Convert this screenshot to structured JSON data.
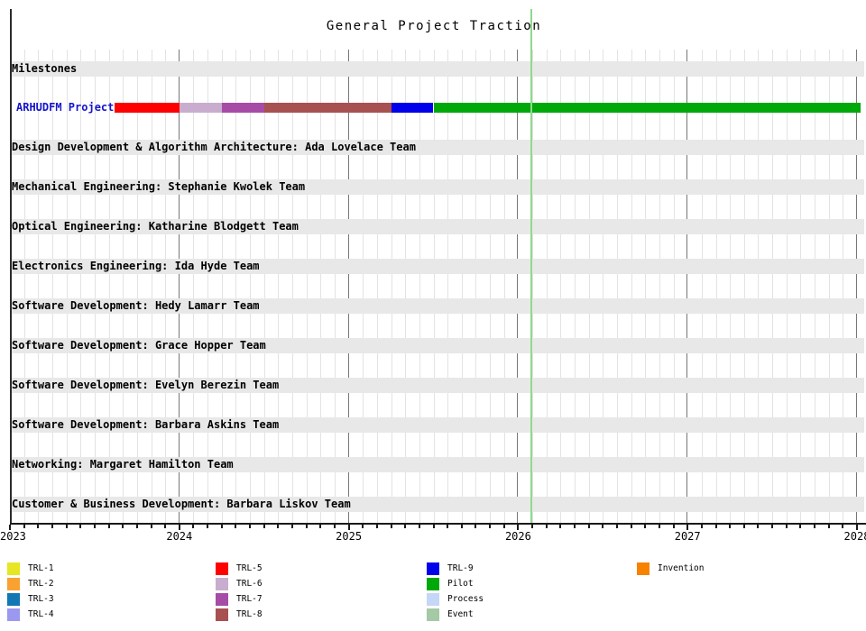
{
  "chart_data": {
    "type": "gantt",
    "title": "General Project Traction",
    "x_axis": {
      "min_year": 2023,
      "max_year": 2028,
      "tick_labels": [
        "2023",
        "2024",
        "2025",
        "2026",
        "2027",
        "2028"
      ],
      "minor_gridlines": "monthly",
      "year_gridlines": true
    },
    "rows": [
      {
        "label": "Milestones",
        "kind": "section"
      },
      {
        "label": "ARHUDFM Project",
        "kind": "bar",
        "label_color": "#1414cc"
      },
      {
        "label": "Design Development & Algorithm Architecture: Ada Lovelace Team",
        "kind": "section"
      },
      {
        "label": "Mechanical Engineering: Stephanie Kwolek Team",
        "kind": "section"
      },
      {
        "label": "Optical Engineering: Katharine Blodgett Team",
        "kind": "section"
      },
      {
        "label": "Electronics Engineering: Ida Hyde Team",
        "kind": "section"
      },
      {
        "label": "Software Development: Hedy Lamarr Team",
        "kind": "section"
      },
      {
        "label": "Software Development: Grace Hopper Team",
        "kind": "section"
      },
      {
        "label": "Software Development: Evelyn Berezin Team",
        "kind": "section"
      },
      {
        "label": "Software Development: Barbara Askins Team",
        "kind": "section"
      },
      {
        "label": "Networking: Margaret Hamilton Team",
        "kind": "section"
      },
      {
        "label": "Customer & Business Development: Barbara Liskov Team",
        "kind": "section"
      }
    ],
    "bar_segments": [
      {
        "name": "TRL-5",
        "color": "#fe0000",
        "start_year": 2023.62,
        "end_year": 2024.0
      },
      {
        "name": "TRL-6",
        "color": "#c9adcf",
        "start_year": 2024.0,
        "end_year": 2024.25
      },
      {
        "name": "TRL-7",
        "color": "#a64ca6",
        "start_year": 2024.25,
        "end_year": 2024.5
      },
      {
        "name": "TRL-8",
        "color": "#a85151",
        "start_year": 2024.5,
        "end_year": 2025.25
      },
      {
        "name": "TRL-9",
        "color": "#0000ea",
        "start_year": 2025.25,
        "end_year": 2025.5
      },
      {
        "name": "Pilot",
        "color": "#00a80a",
        "start_year": 2025.5,
        "end_year": 2028.02
      }
    ],
    "today_line": {
      "year": 2026.08,
      "color": "#8fd98f"
    },
    "legend_position": "bottom",
    "grid": true
  },
  "legend_columns": [
    {
      "items": [
        {
          "label": "TRL-1",
          "color": "#e6e622"
        },
        {
          "label": "TRL-2",
          "color": "#f9a231"
        },
        {
          "label": "TRL-3",
          "color": "#1178b4"
        },
        {
          "label": "TRL-4",
          "color": "#9a99ef"
        }
      ]
    },
    {
      "items": [
        {
          "label": "TRL-5",
          "color": "#fe0000"
        },
        {
          "label": "TRL-6",
          "color": "#c9adcf"
        },
        {
          "label": "TRL-7",
          "color": "#a64ca6"
        },
        {
          "label": "TRL-8",
          "color": "#a85151"
        }
      ]
    },
    {
      "items": [
        {
          "label": "TRL-9",
          "color": "#0000ea"
        },
        {
          "label": "Pilot",
          "color": "#00a80a"
        },
        {
          "label": "Process",
          "color": "#c4d7f7"
        },
        {
          "label": "Event",
          "color": "#a4c9a4"
        }
      ]
    },
    {
      "items": [
        {
          "label": "Invention",
          "color": "#f78200"
        }
      ]
    }
  ]
}
